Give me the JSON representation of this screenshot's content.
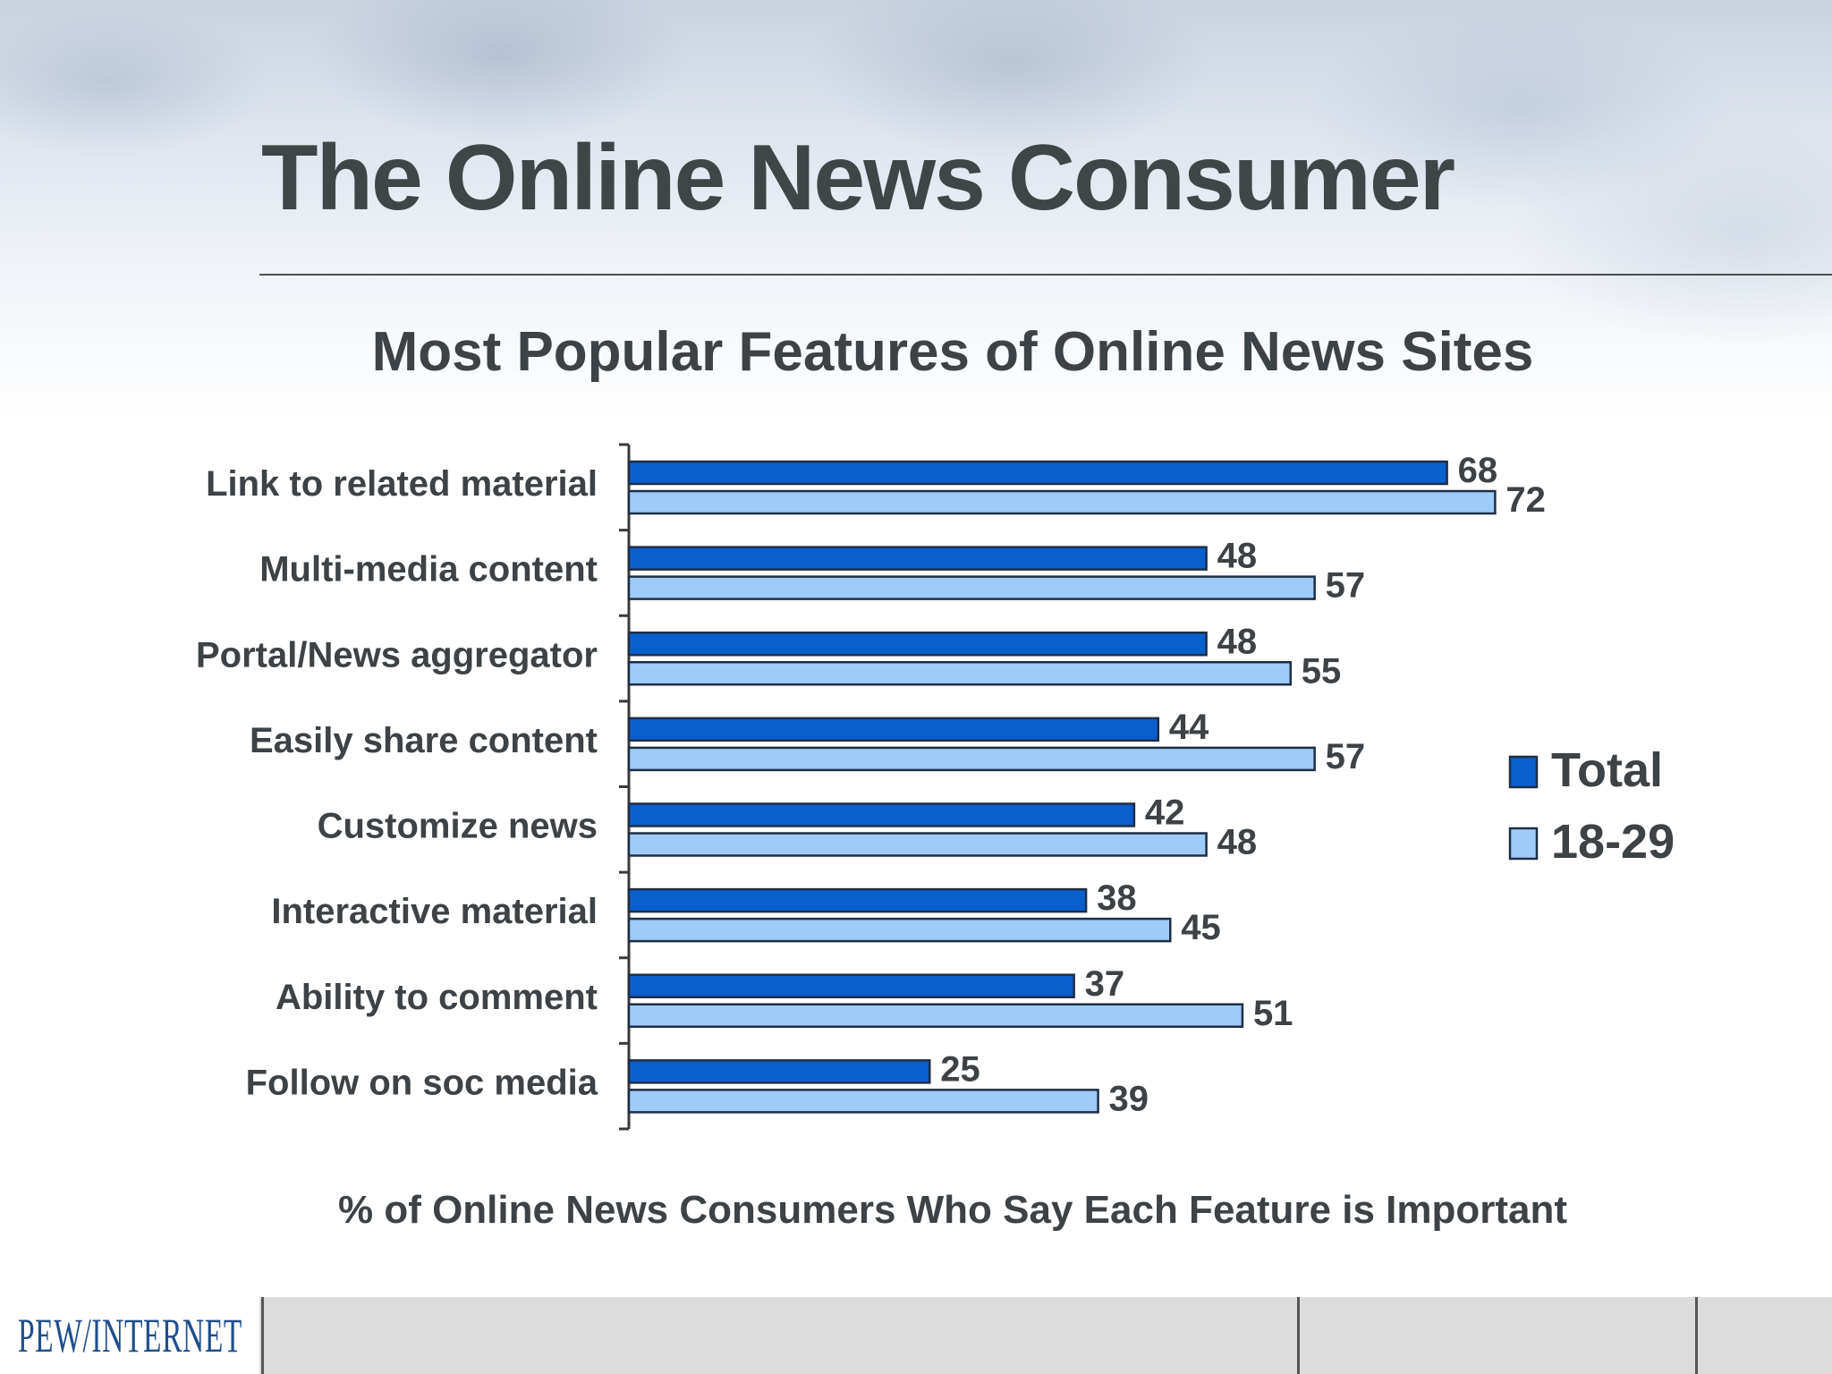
{
  "header": {
    "title": "The Online News Consumer"
  },
  "chart_data": {
    "type": "bar",
    "orientation": "horizontal",
    "title": "Most Popular Features of Online News Sites",
    "xlabel": "% of Online News Consumers Who Say Each Feature is Important",
    "ylabel": "",
    "categories": [
      "Link to related material",
      "Multi-media content",
      "Portal/News aggregator",
      "Easily share content",
      "Customize news",
      "Interactive material",
      "Ability to comment",
      "Follow on soc media"
    ],
    "series": [
      {
        "name": "Total",
        "color": "#0a5fcf",
        "values": [
          68,
          48,
          48,
          44,
          42,
          38,
          37,
          25
        ]
      },
      {
        "name": "18-29",
        "color": "#9ecbf7",
        "values": [
          72,
          57,
          55,
          57,
          48,
          45,
          51,
          39
        ]
      }
    ],
    "xlim": [
      0,
      100
    ],
    "grid": false,
    "legend_position": "right",
    "data_labels": true
  },
  "footer": {
    "logo_text": "PEW/INTERNET"
  }
}
